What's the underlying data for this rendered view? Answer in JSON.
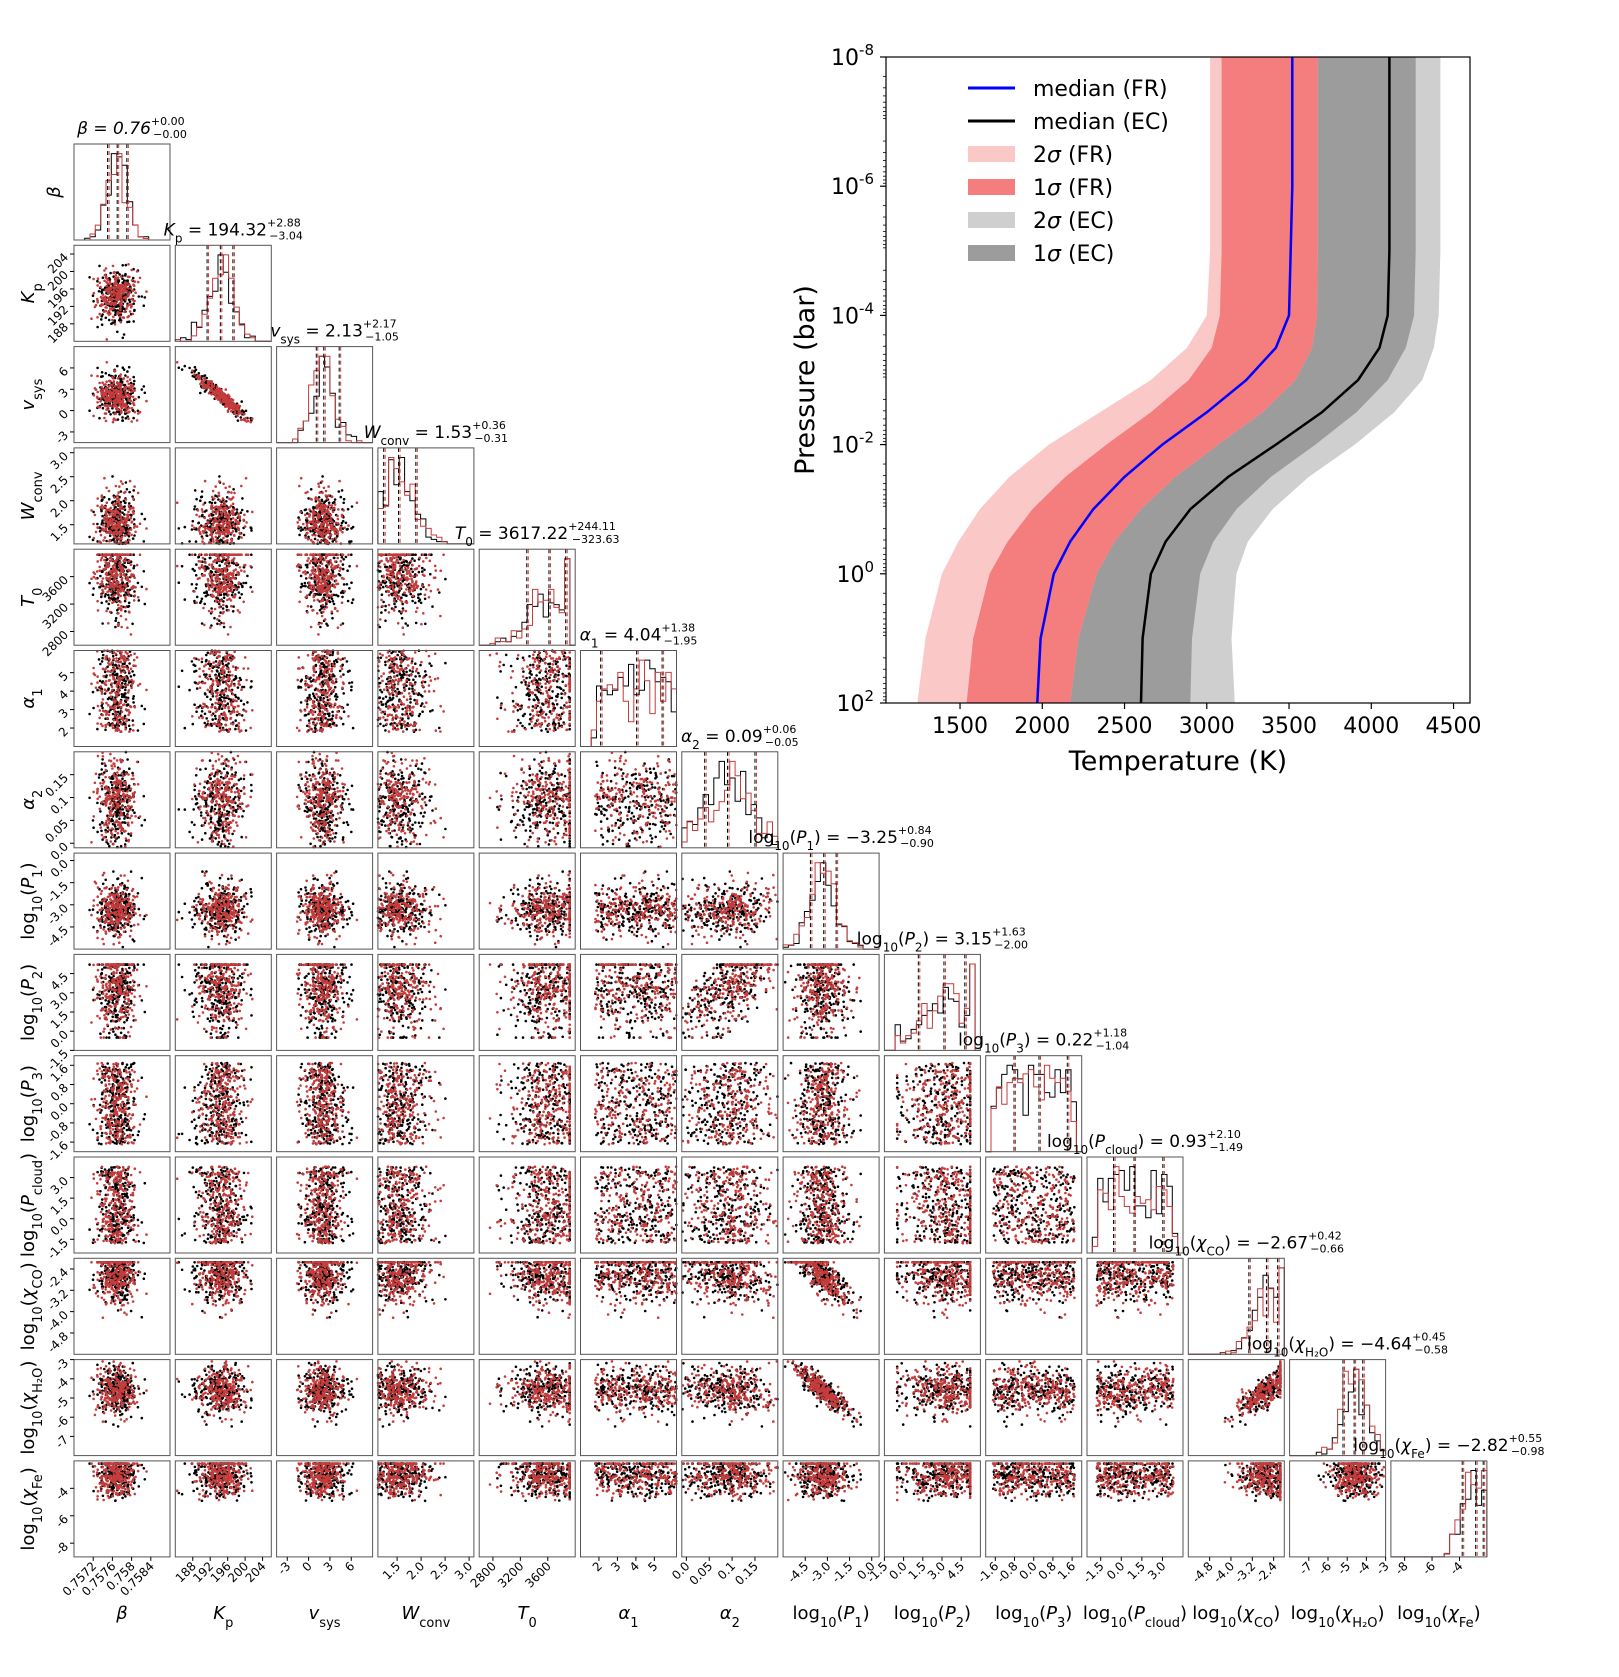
{
  "chart_data": [
    {
      "type": "line",
      "xlabel": "Temperature (K)",
      "ylabel": "Pressure (bar)",
      "xlim": [
        1050,
        4600
      ],
      "ylim": [
        100,
        1e-08
      ],
      "yscale": "log",
      "y_reversed": true,
      "x_ticks": [
        "1500",
        "2000",
        "2500",
        "3000",
        "3500",
        "4000",
        "4500"
      ],
      "x_tick_values": [
        1500,
        2000,
        2500,
        3000,
        3500,
        4000,
        4500
      ],
      "y_ticks": [
        {
          "base": "10",
          "exp": "-8",
          "value": 1e-08
        },
        {
          "base": "10",
          "exp": "-6",
          "value": 1e-06
        },
        {
          "base": "10",
          "exp": "-4",
          "value": 0.0001
        },
        {
          "base": "10",
          "exp": "-2",
          "value": 0.01
        },
        {
          "base": "10",
          "exp": "0",
          "value": 1
        },
        {
          "base": "10",
          "exp": "2",
          "value": 100
        }
      ],
      "legend_position": "top-left",
      "legend": [
        {
          "label": "median (FR)",
          "kind": "line",
          "color": "#0000ff"
        },
        {
          "label": "median (EC)",
          "kind": "line",
          "color": "#000000"
        },
        {
          "label": "2σ (FR)",
          "kind": "patch",
          "color": "#fbc8c8"
        },
        {
          "label": "1σ (FR)",
          "kind": "patch",
          "color": "#f47e7e"
        },
        {
          "label": "2σ (EC)",
          "kind": "patch",
          "color": "#cfcfcf"
        },
        {
          "label": "1σ (EC)",
          "kind": "patch",
          "color": "#9c9c9c"
        }
      ],
      "pressure_bar": [
        100,
        10,
        1,
        0.3162,
        0.1,
        0.03162,
        0.01,
        0.003162,
        0.001,
        0.0003162,
        0.0001,
        1e-05,
        1e-06,
        1e-07,
        1e-08
      ],
      "series": [
        {
          "name": "2σ (FR)",
          "kind": "band",
          "color": "#fbc8c8",
          "lower": [
            1240,
            1290,
            1390,
            1490,
            1620,
            1800,
            2040,
            2350,
            2660,
            2880,
            3000,
            3020,
            3020,
            3020,
            3020
          ],
          "upper": [
            2280,
            2330,
            2420,
            2510,
            2660,
            2880,
            3140,
            3420,
            3640,
            3760,
            3800,
            3810,
            3810,
            3810,
            3810
          ]
        },
        {
          "name": "1σ (FR)",
          "kind": "band",
          "color": "#f47e7e",
          "lower": [
            1540,
            1580,
            1680,
            1790,
            1940,
            2140,
            2390,
            2660,
            2890,
            3030,
            3080,
            3090,
            3090,
            3090,
            3090
          ],
          "upper": [
            2170,
            2220,
            2330,
            2440,
            2600,
            2810,
            3070,
            3340,
            3540,
            3640,
            3670,
            3675,
            3675,
            3675,
            3675
          ]
        },
        {
          "name": "2σ (EC)",
          "kind": "band",
          "color": "#cfcfcf",
          "lower": [
            2280,
            2330,
            2420,
            2510,
            2660,
            2880,
            3140,
            3420,
            3640,
            3760,
            3800,
            3810,
            3810,
            3810,
            3810
          ],
          "upper": [
            3170,
            3150,
            3180,
            3250,
            3400,
            3620,
            3900,
            4140,
            4310,
            4380,
            4410,
            4420,
            4420,
            4420,
            4420
          ]
        },
        {
          "name": "1σ (EC)",
          "kind": "band",
          "color": "#9c9c9c",
          "lower": [
            2170,
            2220,
            2330,
            2440,
            2600,
            2810,
            3070,
            3340,
            3540,
            3640,
            3670,
            3675,
            3675,
            3675,
            3675
          ],
          "upper": [
            2900,
            2910,
            2960,
            3040,
            3180,
            3390,
            3660,
            3910,
            4100,
            4210,
            4260,
            4270,
            4270,
            4270,
            4270
          ]
        },
        {
          "name": "median (FR)",
          "kind": "line",
          "color": "#0000ff",
          "values": [
            1970,
            1990,
            2070,
            2170,
            2310,
            2500,
            2730,
            3000,
            3240,
            3420,
            3500,
            3510,
            3520,
            3520,
            3520
          ]
        },
        {
          "name": "median (EC)",
          "kind": "line",
          "color": "#000000",
          "values": [
            2600,
            2610,
            2660,
            2750,
            2900,
            3130,
            3420,
            3700,
            3920,
            4050,
            4100,
            4110,
            4110,
            4110,
            4110
          ]
        }
      ]
    },
    {
      "type": "scatter",
      "layout": "corner",
      "marker_colors": [
        "#000000",
        "#c43c3c"
      ],
      "parameters": [
        {
          "key": "beta",
          "range": [
            0.7568,
            0.7588
          ],
          "title": {
            "prefix": "β = 0.76",
            "up": "+0.00",
            "down": "−0.00"
          },
          "axis_label": {
            "text": "β"
          },
          "ticks": [
            "0.7572",
            "0.7576",
            "0.758",
            "0.7584"
          ],
          "tick_values": [
            0.7572,
            0.7576,
            0.758,
            0.7584
          ],
          "median": 0.7577,
          "low": 0.7575,
          "high": 0.7579
        },
        {
          "key": "Kp",
          "range": [
            184,
            206
          ],
          "title": {
            "prefix": "K",
            "sub": "p",
            "mid": " = 194.32",
            "up": "+2.88",
            "down": "−3.04"
          },
          "axis_label": {
            "text": "K",
            "sub": "p"
          },
          "ticks": [
            "188",
            "192",
            "196",
            "200",
            "204"
          ],
          "tick_values": [
            188,
            192,
            196,
            200,
            204
          ],
          "median": 194.32,
          "low": 191.28,
          "high": 197.2
        },
        {
          "key": "vsys",
          "range": [
            -4.5,
            9
          ],
          "title": {
            "prefix": "v",
            "sub": "sys",
            "mid": " = 2.13",
            "up": "+2.17",
            "down": "−1.05"
          },
          "axis_label": {
            "text": "v",
            "sub": "sys"
          },
          "ticks": [
            "-3",
            "0",
            "3",
            "6"
          ],
          "tick_values": [
            -3,
            0,
            3,
            6
          ],
          "median": 2.13,
          "low": 1.08,
          "high": 4.3
        },
        {
          "key": "Wconv",
          "range": [
            1.1,
            3.1
          ],
          "title": {
            "prefix": "W",
            "sub": "conv",
            "mid": " = 1.53",
            "up": "+0.36",
            "down": "−0.31"
          },
          "axis_label": {
            "text": "W",
            "sub": "conv"
          },
          "ticks": [
            "1.5",
            "2.0",
            "2.5",
            "3.0"
          ],
          "tick_values": [
            1.5,
            2.0,
            2.5,
            3.0
          ],
          "median": 1.53,
          "low": 1.22,
          "high": 1.89
        },
        {
          "key": "T0",
          "range": [
            2600,
            4000
          ],
          "title": {
            "prefix": "T",
            "sub": "0",
            "mid": " = 3617.22",
            "up": "+244.11",
            "down": "−323.63"
          },
          "axis_label": {
            "text": "T",
            "sub": "0"
          },
          "ticks": [
            "2800",
            "3200",
            "3600"
          ],
          "tick_values": [
            2800,
            3200,
            3600
          ],
          "median": 3617.22,
          "low": 3293.59,
          "high": 3861.33
        },
        {
          "key": "alpha1",
          "range": [
            1,
            6.2
          ],
          "title": {
            "prefix": "α",
            "sub": "1",
            "mid": " = 4.04",
            "up": "+1.38",
            "down": "−1.95"
          },
          "axis_label": {
            "text": "α",
            "sub": "1"
          },
          "ticks": [
            "2",
            "3",
            "4",
            "5"
          ],
          "tick_values": [
            2,
            3,
            4,
            5
          ],
          "median": 4.04,
          "low": 2.09,
          "high": 5.42
        },
        {
          "key": "alpha2",
          "range": [
            -0.01,
            0.2
          ],
          "title": {
            "prefix": "α",
            "sub": "2",
            "mid": " = 0.09",
            "up": "+0.06",
            "down": "−0.05"
          },
          "axis_label": {
            "text": "α",
            "sub": "2"
          },
          "ticks": [
            "0.0",
            "0.05",
            "0.1",
            "0.15"
          ],
          "tick_values": [
            0.0,
            0.05,
            0.1,
            0.15
          ],
          "median": 0.09,
          "low": 0.04,
          "high": 0.15
        },
        {
          "key": "logP1",
          "range": [
            -6,
            0.5
          ],
          "title": {
            "prefix": "log",
            "sub": "10",
            "mid": "(P",
            "sub2": "1",
            "tail": ") = −3.25",
            "up": "+0.84",
            "down": "−0.90"
          },
          "axis_label": {
            "text": "log",
            "sub": "10",
            "mid": "(P",
            "sub2": "1",
            "tail": ")"
          },
          "ticks": [
            "-4.5",
            "-3.0",
            "-1.5",
            "0.0"
          ],
          "tick_values": [
            -4.5,
            -3.0,
            -1.5,
            0.0
          ],
          "median": -3.25,
          "low": -4.15,
          "high": -2.41
        },
        {
          "key": "logP2",
          "range": [
            -1.5,
            6
          ],
          "title": {
            "prefix": "log",
            "sub": "10",
            "mid": "(P",
            "sub2": "2",
            "tail": ") = 3.15",
            "up": "+1.63",
            "down": "−2.00"
          },
          "axis_label": {
            "text": "log",
            "sub": "10",
            "mid": "(P",
            "sub2": "2",
            "tail": ")"
          },
          "ticks": [
            "-1.5",
            "0.0",
            "1.5",
            "3.0",
            "4.5"
          ],
          "tick_values": [
            -1.5,
            0.0,
            1.5,
            3.0,
            4.5
          ],
          "median": 3.15,
          "low": 1.15,
          "high": 4.78
        },
        {
          "key": "logP3",
          "range": [
            -2,
            2
          ],
          "title": {
            "prefix": "log",
            "sub": "10",
            "mid": "(P",
            "sub2": "3",
            "tail": ") = 0.22",
            "up": "+1.18",
            "down": "−1.04"
          },
          "axis_label": {
            "text": "log",
            "sub": "10",
            "mid": "(P",
            "sub2": "3",
            "tail": ")"
          },
          "ticks": [
            "-1.6",
            "-0.8",
            "0.0",
            "0.8",
            "1.6"
          ],
          "tick_values": [
            -1.6,
            -0.8,
            0.0,
            0.8,
            1.6
          ],
          "median": 0.22,
          "low": -0.82,
          "high": 1.4
        },
        {
          "key": "logPcloud",
          "range": [
            -2.5,
            4.5
          ],
          "title": {
            "prefix": "log",
            "sub": "10",
            "mid": "(P",
            "sub2": "cloud",
            "tail": ") = 0.93",
            "up": "+2.10",
            "down": "−1.49"
          },
          "axis_label": {
            "text": "log",
            "sub": "10",
            "mid": "(P",
            "sub2": "cloud",
            "tail": ")"
          },
          "ticks": [
            "-1.5",
            "0.0",
            "1.5",
            "3.0"
          ],
          "tick_values": [
            -1.5,
            0.0,
            1.5,
            3.0
          ],
          "median": 0.93,
          "low": -0.56,
          "high": 3.03
        },
        {
          "key": "logXCO",
          "range": [
            -5.6,
            -2.0
          ],
          "title": {
            "prefix": "log",
            "sub": "10",
            "mid": "(χ",
            "sub2": "CO",
            "tail": ") = −2.67",
            "up": "+0.42",
            "down": "−0.66"
          },
          "axis_label": {
            "text": "log",
            "sub": "10",
            "mid": "(χ",
            "sub2": "CO",
            "tail": ")"
          },
          "ticks": [
            "-4.8",
            "-4.0",
            "-3.2",
            "-2.4"
          ],
          "tick_values": [
            -4.8,
            -4.0,
            -3.2,
            -2.4
          ],
          "median": -2.67,
          "low": -3.33,
          "high": -2.25
        },
        {
          "key": "logXH2O",
          "range": [
            -8,
            -3
          ],
          "title": {
            "prefix": "log",
            "sub": "10",
            "mid": "(χ",
            "sub2": "H₂O",
            "tail": ") = −4.64",
            "up": "+0.45",
            "down": "−0.58"
          },
          "axis_label": {
            "text": "log",
            "sub": "10",
            "mid": "(χ",
            "sub2": "H₂O",
            "tail": ")"
          },
          "ticks": [
            "-7",
            "-6",
            "-5",
            "-4",
            "-3"
          ],
          "tick_values": [
            -7,
            -6,
            -5,
            -4,
            -3
          ],
          "median": -4.64,
          "low": -5.22,
          "high": -4.19
        },
        {
          "key": "logXFe",
          "range": [
            -9,
            -2
          ],
          "title": {
            "prefix": "log",
            "sub": "10",
            "mid": "(χ",
            "sub2": "Fe",
            "tail": ") = −2.82",
            "up": "+0.55",
            "down": "−0.98"
          },
          "axis_label": {
            "text": "log",
            "sub": "10",
            "mid": "(χ",
            "sub2": "Fe",
            "tail": ")"
          },
          "ticks": [
            "-8",
            "-6",
            "-4"
          ],
          "tick_values": [
            -8,
            -6,
            -4
          ],
          "median": -2.82,
          "low": -3.8,
          "high": -2.27
        }
      ]
    }
  ]
}
